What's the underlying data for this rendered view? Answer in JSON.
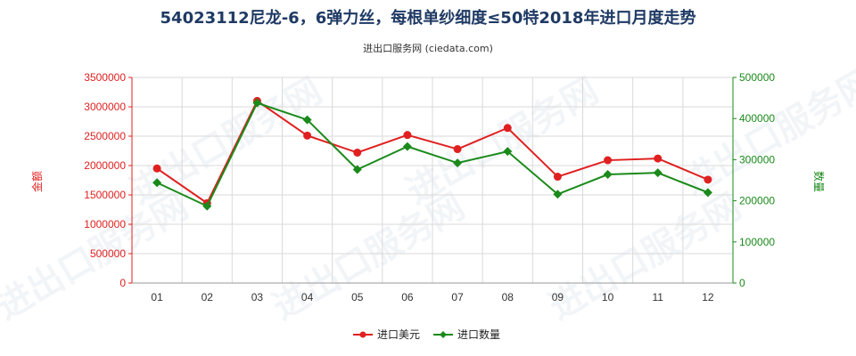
{
  "chart_data": {
    "type": "line",
    "title": "54023112尼龙-6，6弹力丝，每根单纱细度≤50特2018年进口月度走势",
    "subtitle": "进出口服务网 (ciedata.com)",
    "watermark": "进出口服务网",
    "categories": [
      "01",
      "02",
      "03",
      "04",
      "05",
      "06",
      "07",
      "08",
      "09",
      "10",
      "11",
      "12"
    ],
    "y_left": {
      "label": "金额",
      "ylim": [
        0,
        3500000
      ],
      "ticks": [
        0,
        500000,
        1000000,
        1500000,
        2000000,
        2500000,
        3000000,
        3500000
      ],
      "color": "#e02020"
    },
    "y_right": {
      "label": "数量",
      "ylim": [
        0,
        500000
      ],
      "ticks": [
        0,
        100000,
        200000,
        300000,
        400000,
        500000
      ],
      "color": "#1a8a1a"
    },
    "series": [
      {
        "name": "进口美元",
        "axis": "left",
        "color": "#e02020",
        "marker": "circle",
        "values": [
          1950000,
          1360000,
          3100000,
          2510000,
          2220000,
          2520000,
          2280000,
          2640000,
          1810000,
          2090000,
          2120000,
          1760000
        ]
      },
      {
        "name": "进口数量",
        "axis": "right",
        "color": "#1a8a1a",
        "marker": "diamond",
        "values": [
          244000,
          187000,
          438000,
          397000,
          276000,
          332000,
          292000,
          320000,
          216000,
          264000,
          268000,
          220000
        ]
      }
    ],
    "grid": true,
    "legend": "bottom-center"
  }
}
